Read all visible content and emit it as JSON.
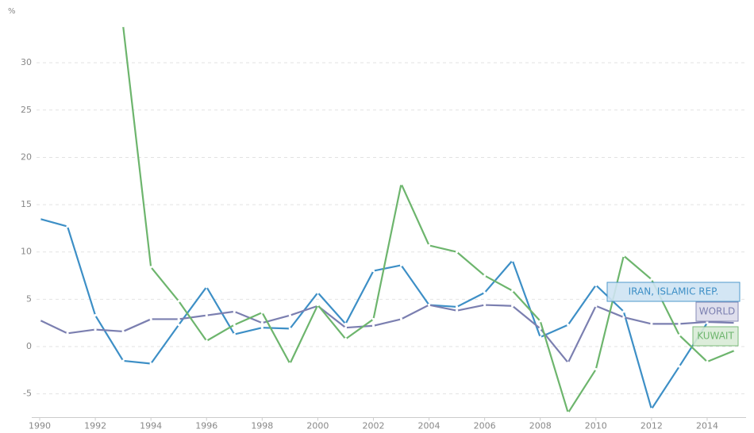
{
  "chart_data": {
    "type": "line",
    "y_label": "%",
    "x": [
      1990,
      1991,
      1992,
      1993,
      1994,
      1995,
      1996,
      1997,
      1998,
      1999,
      2000,
      2001,
      2002,
      2003,
      2004,
      2005,
      2006,
      2007,
      2008,
      2009,
      2010,
      2011,
      2012,
      2013,
      2014,
      2015
    ],
    "xlim": [
      1990,
      2015
    ],
    "xticks": [
      1990,
      1992,
      1994,
      1996,
      1998,
      2000,
      2002,
      2004,
      2006,
      2008,
      2010,
      2012,
      2014
    ],
    "ylim": [
      -7.5,
      35
    ],
    "yticks": [
      -5,
      0,
      5,
      10,
      15,
      20,
      25,
      30
    ],
    "grid": true,
    "series": [
      {
        "name": "IRAN, ISLAMIC REP.",
        "color": "#3d8fc6",
        "values": [
          13.5,
          12.7,
          3.3,
          -1.5,
          -1.8,
          2.3,
          6.3,
          1.3,
          2.0,
          1.9,
          5.7,
          2.4,
          8.0,
          8.6,
          4.4,
          4.2,
          5.7,
          9.1,
          1.0,
          2.3,
          6.5,
          3.7,
          -6.6,
          -2.1,
          2.5,
          null
        ]
      },
      {
        "name": "WORLD",
        "color": "#7b7fb0",
        "values": [
          2.8,
          1.4,
          1.8,
          1.6,
          2.9,
          2.9,
          3.3,
          3.7,
          2.5,
          3.3,
          4.3,
          2.0,
          2.2,
          2.9,
          4.4,
          3.8,
          4.4,
          4.3,
          1.9,
          -1.7,
          4.3,
          3.1,
          2.4,
          2.4,
          2.6,
          2.5
        ]
      },
      {
        "name": "KUWAIT",
        "color": "#6db56d",
        "values": [
          null,
          null,
          null,
          33.9,
          8.4,
          4.8,
          0.6,
          2.3,
          3.6,
          -1.8,
          4.4,
          0.8,
          2.9,
          17.2,
          10.7,
          10.0,
          7.5,
          5.9,
          2.7,
          -7.0,
          -2.4,
          9.6,
          7.1,
          1.2,
          -1.6,
          -0.4
        ]
      }
    ]
  }
}
